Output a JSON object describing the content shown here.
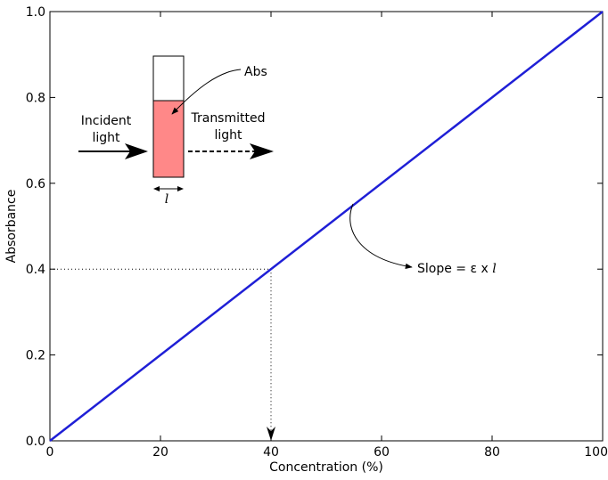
{
  "chart_data": {
    "type": "line",
    "xlabel": "Concentration (%)",
    "ylabel": "Absorbance",
    "xlim": [
      0,
      100
    ],
    "ylim": [
      0,
      1.0
    ],
    "x_ticks": [
      "0",
      "20",
      "40",
      "60",
      "80",
      "100"
    ],
    "x_tick_values": [
      0,
      20,
      40,
      60,
      80,
      100
    ],
    "y_ticks": [
      "0.0",
      "0.2",
      "0.4",
      "0.6",
      "0.8",
      "1.0"
    ],
    "y_tick_values": [
      0,
      0.2,
      0.4,
      0.6,
      0.8,
      1.0
    ],
    "grid": false,
    "series": [
      {
        "x": [
          0,
          100
        ],
        "y": [
          0,
          1.0
        ],
        "color": "#1f1fd6"
      }
    ],
    "reference_point": {
      "x": 40,
      "y": 0.4
    },
    "annotations": {
      "incident": [
        "Incident",
        "light"
      ],
      "transmitted": [
        "Transmitted",
        "light"
      ],
      "abs": "Abs",
      "path_length": "l",
      "slope_prefix": "Slope = ε x ",
      "slope_var": "l"
    },
    "colors": {
      "line": "#1f1fd6",
      "liquid": "#ff8888"
    }
  }
}
